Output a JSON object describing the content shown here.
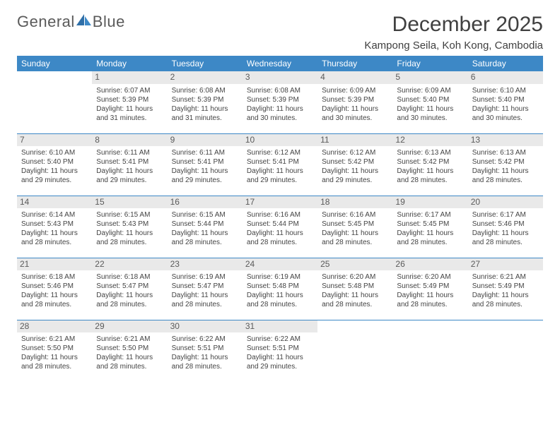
{
  "brand": {
    "word1": "General",
    "word2": "Blue"
  },
  "colors": {
    "header_bg": "#3d88c6",
    "header_text": "#ffffff",
    "daynum_bg": "#e9e9e9",
    "text": "#404040",
    "rule": "#3d88c6"
  },
  "title": "December 2025",
  "location": "Kampong Seila, Koh Kong, Cambodia",
  "weekdays": [
    "Sunday",
    "Monday",
    "Tuesday",
    "Wednesday",
    "Thursday",
    "Friday",
    "Saturday"
  ],
  "weeks": [
    [
      null,
      {
        "n": 1,
        "sunrise": "6:07 AM",
        "sunset": "5:39 PM",
        "daylight": "11 hours and 31 minutes."
      },
      {
        "n": 2,
        "sunrise": "6:08 AM",
        "sunset": "5:39 PM",
        "daylight": "11 hours and 31 minutes."
      },
      {
        "n": 3,
        "sunrise": "6:08 AM",
        "sunset": "5:39 PM",
        "daylight": "11 hours and 30 minutes."
      },
      {
        "n": 4,
        "sunrise": "6:09 AM",
        "sunset": "5:39 PM",
        "daylight": "11 hours and 30 minutes."
      },
      {
        "n": 5,
        "sunrise": "6:09 AM",
        "sunset": "5:40 PM",
        "daylight": "11 hours and 30 minutes."
      },
      {
        "n": 6,
        "sunrise": "6:10 AM",
        "sunset": "5:40 PM",
        "daylight": "11 hours and 30 minutes."
      }
    ],
    [
      {
        "n": 7,
        "sunrise": "6:10 AM",
        "sunset": "5:40 PM",
        "daylight": "11 hours and 29 minutes."
      },
      {
        "n": 8,
        "sunrise": "6:11 AM",
        "sunset": "5:41 PM",
        "daylight": "11 hours and 29 minutes."
      },
      {
        "n": 9,
        "sunrise": "6:11 AM",
        "sunset": "5:41 PM",
        "daylight": "11 hours and 29 minutes."
      },
      {
        "n": 10,
        "sunrise": "6:12 AM",
        "sunset": "5:41 PM",
        "daylight": "11 hours and 29 minutes."
      },
      {
        "n": 11,
        "sunrise": "6:12 AM",
        "sunset": "5:42 PM",
        "daylight": "11 hours and 29 minutes."
      },
      {
        "n": 12,
        "sunrise": "6:13 AM",
        "sunset": "5:42 PM",
        "daylight": "11 hours and 28 minutes."
      },
      {
        "n": 13,
        "sunrise": "6:13 AM",
        "sunset": "5:42 PM",
        "daylight": "11 hours and 28 minutes."
      }
    ],
    [
      {
        "n": 14,
        "sunrise": "6:14 AM",
        "sunset": "5:43 PM",
        "daylight": "11 hours and 28 minutes."
      },
      {
        "n": 15,
        "sunrise": "6:15 AM",
        "sunset": "5:43 PM",
        "daylight": "11 hours and 28 minutes."
      },
      {
        "n": 16,
        "sunrise": "6:15 AM",
        "sunset": "5:44 PM",
        "daylight": "11 hours and 28 minutes."
      },
      {
        "n": 17,
        "sunrise": "6:16 AM",
        "sunset": "5:44 PM",
        "daylight": "11 hours and 28 minutes."
      },
      {
        "n": 18,
        "sunrise": "6:16 AM",
        "sunset": "5:45 PM",
        "daylight": "11 hours and 28 minutes."
      },
      {
        "n": 19,
        "sunrise": "6:17 AM",
        "sunset": "5:45 PM",
        "daylight": "11 hours and 28 minutes."
      },
      {
        "n": 20,
        "sunrise": "6:17 AM",
        "sunset": "5:46 PM",
        "daylight": "11 hours and 28 minutes."
      }
    ],
    [
      {
        "n": 21,
        "sunrise": "6:18 AM",
        "sunset": "5:46 PM",
        "daylight": "11 hours and 28 minutes."
      },
      {
        "n": 22,
        "sunrise": "6:18 AM",
        "sunset": "5:47 PM",
        "daylight": "11 hours and 28 minutes."
      },
      {
        "n": 23,
        "sunrise": "6:19 AM",
        "sunset": "5:47 PM",
        "daylight": "11 hours and 28 minutes."
      },
      {
        "n": 24,
        "sunrise": "6:19 AM",
        "sunset": "5:48 PM",
        "daylight": "11 hours and 28 minutes."
      },
      {
        "n": 25,
        "sunrise": "6:20 AM",
        "sunset": "5:48 PM",
        "daylight": "11 hours and 28 minutes."
      },
      {
        "n": 26,
        "sunrise": "6:20 AM",
        "sunset": "5:49 PM",
        "daylight": "11 hours and 28 minutes."
      },
      {
        "n": 27,
        "sunrise": "6:21 AM",
        "sunset": "5:49 PM",
        "daylight": "11 hours and 28 minutes."
      }
    ],
    [
      {
        "n": 28,
        "sunrise": "6:21 AM",
        "sunset": "5:50 PM",
        "daylight": "11 hours and 28 minutes."
      },
      {
        "n": 29,
        "sunrise": "6:21 AM",
        "sunset": "5:50 PM",
        "daylight": "11 hours and 28 minutes."
      },
      {
        "n": 30,
        "sunrise": "6:22 AM",
        "sunset": "5:51 PM",
        "daylight": "11 hours and 28 minutes."
      },
      {
        "n": 31,
        "sunrise": "6:22 AM",
        "sunset": "5:51 PM",
        "daylight": "11 hours and 29 minutes."
      },
      null,
      null,
      null
    ]
  ],
  "labels": {
    "sunrise": "Sunrise:",
    "sunset": "Sunset:",
    "daylight": "Daylight:"
  }
}
